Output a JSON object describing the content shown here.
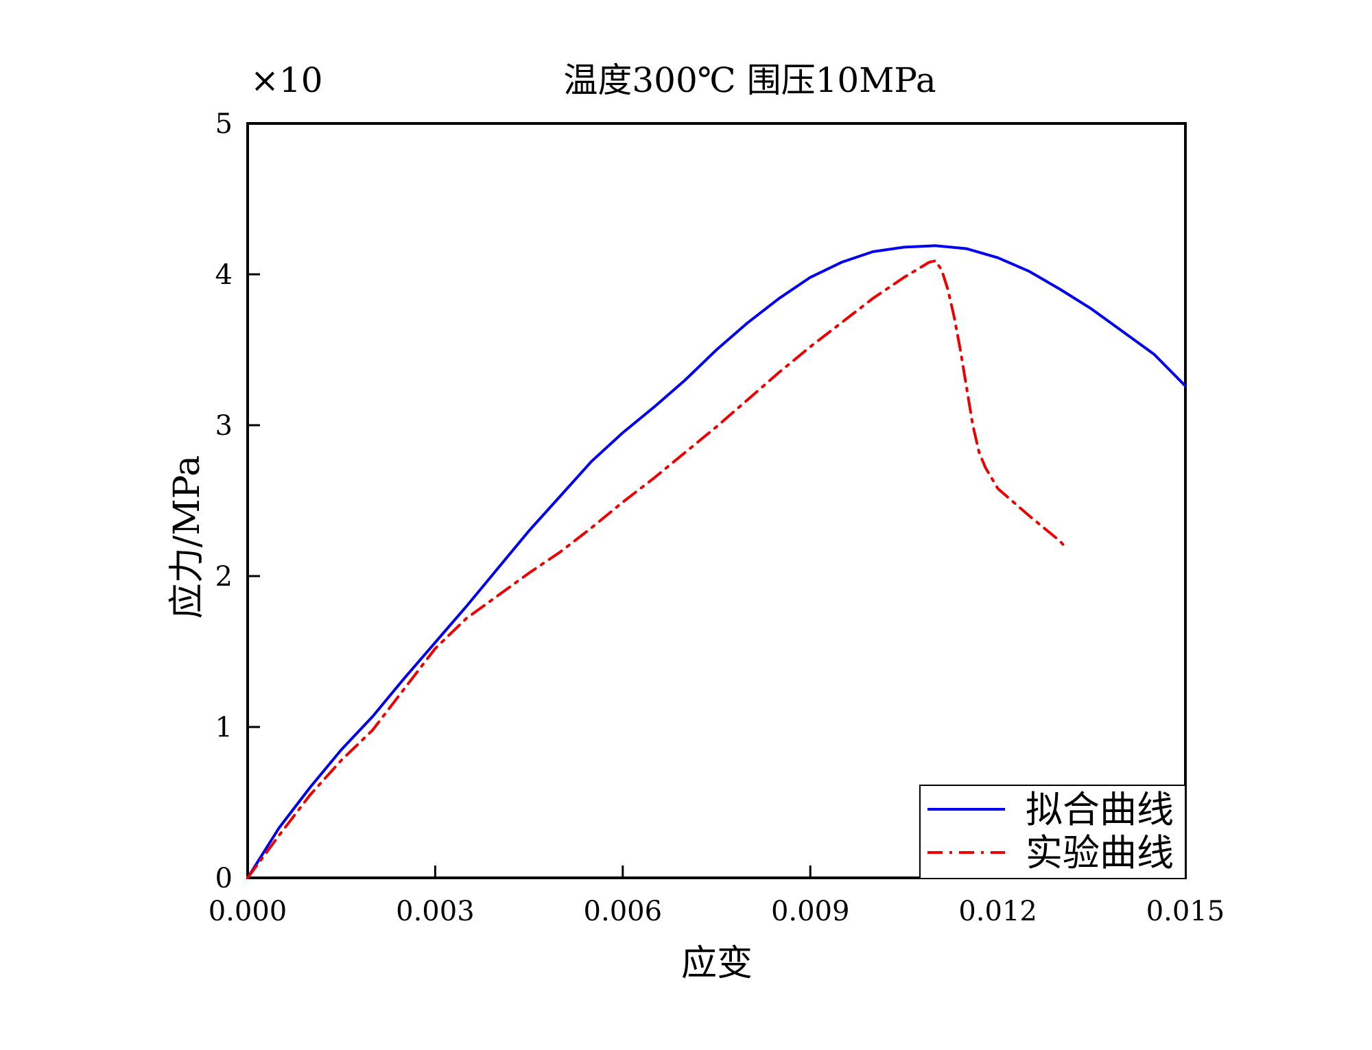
{
  "chart_data": {
    "type": "line",
    "title": "温度300℃ 围压10MPa",
    "multiplier_label": "×10",
    "xlabel": "应变",
    "ylabel": "应力/MPa",
    "xlim": [
      0,
      0.015
    ],
    "ylim": [
      0,
      5
    ],
    "x_ticks": [
      0,
      0.003,
      0.006,
      0.009,
      0.012,
      0.015
    ],
    "x_tick_labels": [
      "0.000",
      "0.003",
      "0.006",
      "0.009",
      "0.012",
      "0.015"
    ],
    "y_ticks": [
      0,
      1,
      2,
      3,
      4,
      5
    ],
    "y_tick_labels": [
      "0",
      "1",
      "2",
      "3",
      "4",
      "5"
    ],
    "legend_position": "bottom-right",
    "series": [
      {
        "name": "拟合曲线",
        "color": "#0000ee",
        "style": "solid",
        "x": [
          0,
          0.0005,
          0.001,
          0.0015,
          0.002,
          0.0025,
          0.003,
          0.0035,
          0.004,
          0.0045,
          0.005,
          0.0055,
          0.006,
          0.0065,
          0.007,
          0.0075,
          0.008,
          0.0085,
          0.009,
          0.0095,
          0.01,
          0.0105,
          0.011,
          0.0115,
          0.012,
          0.0125,
          0.013,
          0.0135,
          0.014,
          0.0145,
          0.015
        ],
        "y": [
          0,
          0.33,
          0.6,
          0.85,
          1.07,
          1.32,
          1.56,
          1.8,
          2.05,
          2.3,
          2.53,
          2.76,
          2.95,
          3.12,
          3.3,
          3.5,
          3.68,
          3.84,
          3.98,
          4.08,
          4.15,
          4.18,
          4.19,
          4.17,
          4.11,
          4.02,
          3.9,
          3.77,
          3.62,
          3.47,
          3.26
        ]
      },
      {
        "name": "实验曲线",
        "color": "#ee0000",
        "style": "dashdot",
        "x": [
          0,
          0.0005,
          0.001,
          0.0015,
          0.002,
          0.0025,
          0.003,
          0.0035,
          0.004,
          0.0045,
          0.005,
          0.0055,
          0.006,
          0.0065,
          0.007,
          0.0075,
          0.008,
          0.0085,
          0.009,
          0.0095,
          0.01,
          0.0105,
          0.0109,
          0.011,
          0.0111,
          0.0112,
          0.0113,
          0.0114,
          0.0115,
          0.0116,
          0.0117,
          0.0118,
          0.012,
          0.0125,
          0.013,
          0.0131
        ],
        "y": [
          0,
          0.28,
          0.55,
          0.78,
          0.98,
          1.25,
          1.52,
          1.72,
          1.87,
          2.02,
          2.16,
          2.32,
          2.49,
          2.65,
          2.82,
          2.99,
          3.17,
          3.35,
          3.52,
          3.68,
          3.84,
          3.98,
          4.08,
          4.09,
          4.03,
          3.9,
          3.72,
          3.5,
          3.25,
          3.0,
          2.82,
          2.72,
          2.58,
          2.4,
          2.23,
          2.18
        ]
      }
    ]
  }
}
